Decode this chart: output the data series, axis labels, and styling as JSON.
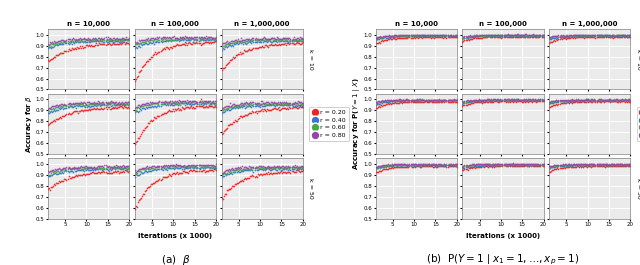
{
  "col_labels": [
    "n = 10,000",
    "n = 100,000",
    "n = 1,000,000"
  ],
  "row_labels": [
    "k = 10",
    "k = 25",
    "k = 50"
  ],
  "xlabel": "Iterations (x 1000)",
  "ylabel_a": "Accuracy for $\\beta$",
  "ylabel_b": "Accuracy for P($Y = 1 \\mid X$)",
  "panel_a_title": "(a)  $\\beta$",
  "panel_b_title": "(b)  P($Y=1 \\mid x_1=1,\\ldots,x_p=1$)",
  "legend_labels": [
    "r = 0.20",
    "r = 0.40",
    "r = 0.60",
    "r = 0.80"
  ],
  "colors": [
    "#ee2222",
    "#3377cc",
    "#44aa44",
    "#9944aa"
  ],
  "ylim": [
    0.5,
    1.05
  ],
  "yticks": [
    0.5,
    0.6,
    0.7,
    0.8,
    0.9,
    1.0
  ],
  "xlim": [
    1,
    20
  ],
  "xticks": [
    5,
    10,
    15,
    20
  ],
  "n_points": 80,
  "seed": 7,
  "bg_color": "#ebebeb",
  "grid_color": "#ffffff"
}
